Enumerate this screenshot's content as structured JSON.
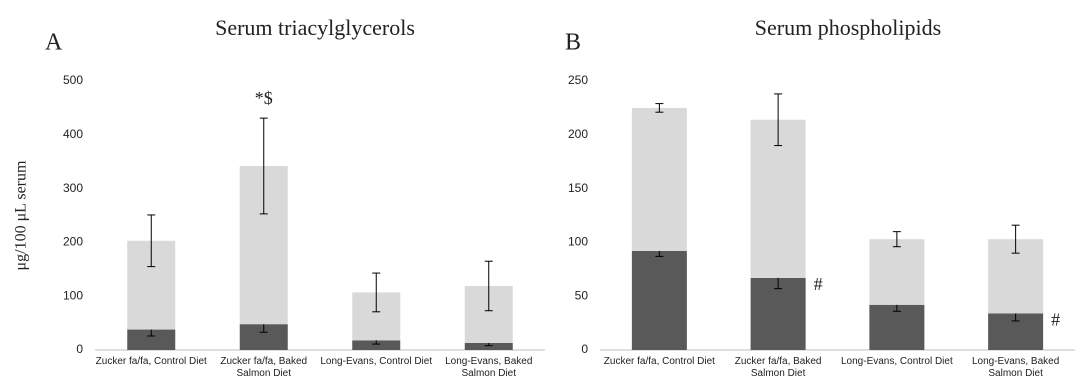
{
  "chart_data": [
    {
      "type": "bar",
      "stacked": true,
      "panel": "A",
      "title": "Serum triacylglycerols",
      "y_label": "μg/100 μL serum",
      "categories": [
        "Zucker fa/fa, Control Diet",
        "Zucker fa/fa, Baked Salmon Diet",
        "Long-Evans, Control Diet",
        "Long-Evans, Baked Salmon Diet"
      ],
      "series": [
        {
          "color": "#595959",
          "values": [
            38,
            48,
            18,
            13
          ],
          "errors": [
            12,
            15,
            7,
            5
          ]
        },
        {
          "color": "#d9d9d9",
          "values": [
            165,
            294,
            89,
            106
          ],
          "errors": [
            48,
            89,
            36,
            46
          ]
        }
      ],
      "annotations": [
        "*$"
      ],
      "ylim": [
        0,
        500
      ],
      "yticks": [
        0,
        100,
        200,
        300,
        400,
        500
      ]
    },
    {
      "type": "bar",
      "stacked": true,
      "panel": "B",
      "title": "Serum phospholipids",
      "categories": [
        "Zucker fa/fa, Control Diet",
        "Zucker fa/fa, Baked Salmon Diet",
        "Long-Evans, Control Diet",
        "Long-Evans, Baked Salmon Diet"
      ],
      "series": [
        {
          "color": "#595959",
          "values": [
            92,
            67,
            42,
            34
          ],
          "errors": [
            5,
            10,
            6,
            7
          ]
        },
        {
          "color": "#d9d9d9",
          "values": [
            133,
            147,
            61,
            69
          ],
          "errors": [
            4,
            24,
            7,
            13
          ]
        }
      ],
      "annotations": [
        "#",
        "#"
      ],
      "ylim": [
        0,
        250
      ],
      "yticks": [
        0,
        50,
        100,
        150,
        200,
        250
      ]
    }
  ]
}
